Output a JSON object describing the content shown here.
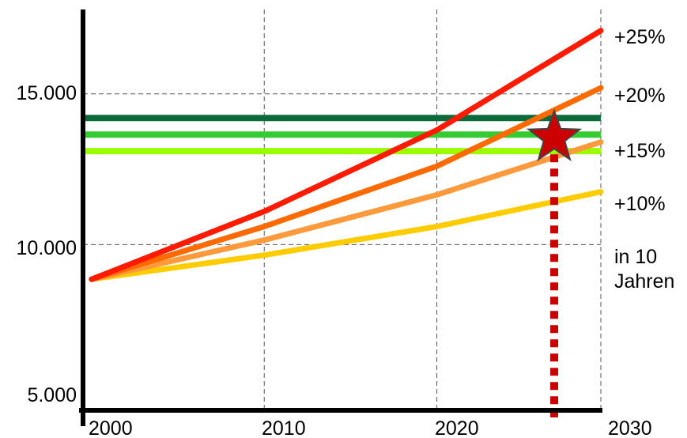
{
  "chart_data": {
    "type": "line",
    "title": "",
    "xlabel": "",
    "ylabel": "",
    "x_ticks": [
      "2000",
      "2010",
      "2020",
      "2030"
    ],
    "y_ticks": [
      "5.000",
      "10.000",
      "15.000"
    ],
    "xlim": [
      1998,
      2028
    ],
    "ylim": [
      4500,
      17800
    ],
    "grid": "dashed",
    "series": [
      {
        "name": "+25%",
        "color": "#ff1a00",
        "points": [
          [
            1998.5,
            8850
          ],
          [
            2008.5,
            11100
          ],
          [
            2018.5,
            13800
          ],
          [
            2028,
            17100
          ]
        ]
      },
      {
        "name": "+20%",
        "color": "#ff6a00",
        "points": [
          [
            1998.5,
            8850
          ],
          [
            2008.5,
            10600
          ],
          [
            2018.5,
            12600
          ],
          [
            2028,
            15200
          ]
        ]
      },
      {
        "name": "+15%",
        "color": "#ff9a3c",
        "points": [
          [
            1998.5,
            8850
          ],
          [
            2008.5,
            10150
          ],
          [
            2018.5,
            11650
          ],
          [
            2028,
            13400
          ]
        ]
      },
      {
        "name": "+10%",
        "color": "#ffcc00",
        "points": [
          [
            1998.5,
            8850
          ],
          [
            2008.5,
            9650
          ],
          [
            2018.5,
            10600
          ],
          [
            2028,
            11750
          ]
        ]
      },
      {
        "name": "in 10 Jahren",
        "color": "#000000",
        "points": []
      }
    ],
    "reference_lines": [
      {
        "y": 14200,
        "color": "#0b6b3a"
      },
      {
        "y": 13650,
        "color": "#33cc33"
      },
      {
        "y": 13100,
        "color": "#99ff00"
      }
    ],
    "marker": {
      "shape": "star",
      "color": "#cc0000",
      "x": 2025.3,
      "y": 13650
    },
    "marker_dropline": {
      "x": 2025.3,
      "color": "#cc0000",
      "style": "dotted"
    }
  }
}
